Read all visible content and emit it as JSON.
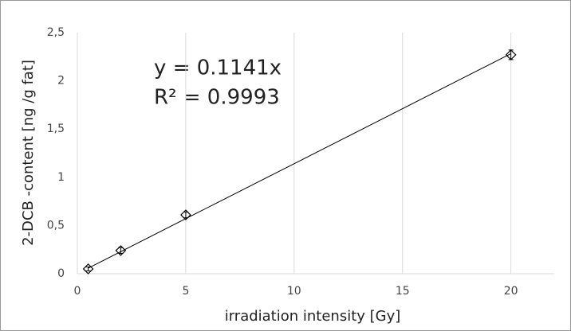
{
  "chart_data": {
    "type": "scatter",
    "x_label": "irradiation intensity [Gy]",
    "y_label": "2-DCB -content [ng /g fat]",
    "x": [
      0.5,
      2,
      5,
      20
    ],
    "series": [
      {
        "color": "#000000",
        "values": [
          0.05,
          0.24,
          0.61,
          2.27
        ],
        "errors": [
          0.02,
          0.03,
          0.03,
          0.05
        ]
      }
    ],
    "xlim": [
      0,
      22
    ],
    "xticks": [
      0,
      5,
      10,
      15,
      20
    ],
    "ylim": [
      0,
      2.5
    ],
    "yticks": [
      0,
      {
        "value": 0.5,
        "label": "0,5"
      },
      1,
      {
        "value": 1.5,
        "label": "1,5"
      },
      2,
      {
        "value": 2.5,
        "label": "2,5"
      }
    ],
    "grid": "x",
    "trendline": {
      "slope": 0.1141,
      "label": "y = 0.1141x",
      "r2_label": "R² = 0.9993",
      "color": "#000000"
    }
  }
}
